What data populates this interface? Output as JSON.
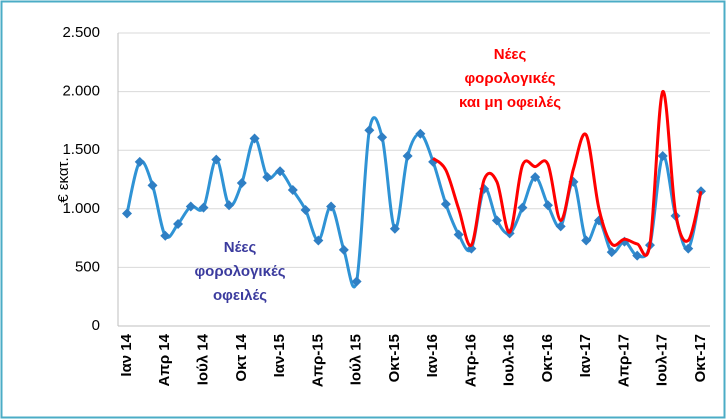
{
  "chart_data": {
    "type": "line",
    "y_label": "€ εκατ.",
    "categories": [
      "Ιαν 14",
      null,
      null,
      "Απρ 14",
      null,
      null,
      "Ιούλ 14",
      null,
      null,
      "Οκτ 14",
      null,
      null,
      "Ιαν-15",
      null,
      null,
      "Απρ-15",
      null,
      null,
      "Ιούλ 15",
      null,
      null,
      "Οκτ-15",
      null,
      null,
      "Ιαν-16",
      null,
      null,
      "Απρ-16",
      null,
      null,
      "Ιουλ-16",
      null,
      null,
      "Οκτ-16",
      null,
      null,
      "Ιαν-17",
      null,
      null,
      "Απρ-17",
      null,
      null,
      "Ιουλ-17",
      null,
      null,
      "Οκτ-17"
    ],
    "series": [
      {
        "name": "Νέες φορολογικές οφειλές",
        "color": "#2f93d5",
        "marker_color": "#2f7fc4",
        "values": [
          960,
          1400,
          1200,
          770,
          870,
          1020,
          1010,
          1420,
          1030,
          1220,
          1600,
          1270,
          1320,
          1160,
          990,
          730,
          1020,
          650,
          380,
          1670,
          1610,
          830,
          1450,
          1640,
          1400,
          1040,
          780,
          660,
          1170,
          900,
          790,
          1010,
          1270,
          1030,
          850,
          1230,
          730,
          900,
          630,
          720,
          600,
          690,
          1450,
          940,
          660,
          1150
        ]
      },
      {
        "name": "Νέες φορολογικές και μη οφειλές",
        "color": "#ff0000",
        "values": [
          null,
          null,
          null,
          null,
          null,
          null,
          null,
          null,
          null,
          null,
          null,
          null,
          null,
          null,
          null,
          null,
          null,
          null,
          null,
          null,
          null,
          null,
          null,
          null,
          1430,
          1330,
          1000,
          690,
          1250,
          1230,
          800,
          1370,
          1360,
          1380,
          900,
          1340,
          1630,
          1000,
          700,
          740,
          700,
          700,
          2000,
          970,
          730,
          1150
        ]
      }
    ],
    "annotations": [
      {
        "lines": [
          "Νέες",
          "φορολογικές",
          "οφειλές"
        ],
        "color": "#3b3b9e"
      },
      {
        "lines": [
          "Νέες",
          "φορολογικές",
          "και μη οφειλές"
        ],
        "color": "#ff0000"
      }
    ],
    "ylim": [
      0,
      2500
    ],
    "yticks": [
      0,
      500,
      {
        "value": 1000,
        "label": "1.000"
      },
      {
        "value": 1500,
        "label": "1.500"
      },
      {
        "value": 2000,
        "label": "2.000"
      },
      {
        "value": 2500,
        "label": "2.500"
      }
    ],
    "grid": true
  }
}
